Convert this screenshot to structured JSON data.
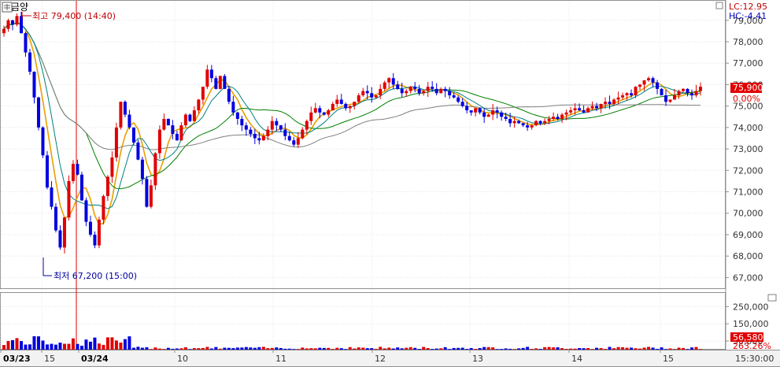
{
  "chart_data": {
    "type": "candlestick",
    "title": "금양",
    "y_axis": {
      "ticks": [
        "79,000",
        "78,000",
        "77,000",
        "76,000",
        "75,000",
        "74,000",
        "73,000",
        "72,000",
        "71,000",
        "70,000",
        "69,000",
        "68,000",
        "67,000"
      ],
      "ylim": [
        66500,
        79800
      ]
    },
    "volume_axis": {
      "ticks": [
        "250,000",
        "150,000",
        "50,000"
      ],
      "max": 320000
    },
    "x_axis": {
      "labels": [
        {
          "text": "03/23",
          "bold": true
        },
        {
          "text": "15",
          "bold": false
        },
        {
          "text": "03/24",
          "bold": true
        },
        {
          "text": "10",
          "bold": false
        },
        {
          "text": "11",
          "bold": false
        },
        {
          "text": "12",
          "bold": false
        },
        {
          "text": "13",
          "bold": false
        },
        {
          "text": "14",
          "bold": false
        },
        {
          "text": "15",
          "bold": false
        }
      ],
      "time_label": "15:30:00"
    },
    "indicators": {
      "lc": "LC:12.95",
      "hc": "HC:-4.41"
    },
    "high_annotation": {
      "value": 79400,
      "text": "최고 79,400 (14:40)"
    },
    "low_annotation": {
      "value": 67200,
      "text": "최저 67,200 (15:00)"
    },
    "current_price": {
      "value": 75900,
      "label": "75,900",
      "change": "0.00%"
    },
    "current_volume": {
      "value": 56580,
      "label": "56,580",
      "ratio": "263.26%"
    },
    "close_series": [
      78600,
      79000,
      78800,
      79200,
      78400,
      77500,
      76600,
      75400,
      74000,
      72700,
      71200,
      70300,
      69200,
      68400,
      69800,
      71500,
      72300,
      71800,
      70600,
      69600,
      69000,
      68500,
      69700,
      70800,
      71700,
      72600,
      74000,
      75200,
      74600,
      74000,
      73300,
      72500,
      71600,
      70300,
      71300,
      72800,
      73900,
      74400,
      74100,
      73700,
      73400,
      74100,
      74600,
      74300,
      74800,
      75300,
      75900,
      76700,
      76300,
      75800,
      76400,
      75800,
      75200,
      74700,
      74400,
      74100,
      73900,
      73700,
      73500,
      73400,
      73600,
      73900,
      74300,
      74100,
      73900,
      73600,
      73400,
      73200,
      73500,
      73900,
      74300,
      74700,
      74900,
      74700,
      74600,
      74800,
      75100,
      75300,
      75100,
      74900,
      75000,
      75200,
      75500,
      75700,
      75600,
      75400,
      75500,
      75800,
      76100,
      76300,
      76000,
      75800,
      75600,
      75700,
      75900,
      75800,
      75600,
      75700,
      75900,
      75800,
      75600,
      75800,
      75700,
      75500,
      75400,
      75200,
      75000,
      74800,
      74700,
      74900,
      74700,
      74500,
      74600,
      74800,
      74700,
      74500,
      74400,
      74200,
      74300,
      74200,
      74100,
      74000,
      74100,
      74300,
      74200,
      74300,
      74400,
      74500,
      74400,
      74600,
      74700,
      74800,
      74900,
      74800,
      74700,
      74900,
      75000,
      74900,
      75100,
      75200,
      75100,
      75300,
      75400,
      75500,
      75600,
      75500,
      75900,
      76000,
      76200,
      76300,
      76100,
      75800,
      75500,
      75200,
      75300,
      75500,
      75700,
      75800,
      75600,
      75500,
      75700,
      75900
    ],
    "candle_color_up": "#e00000",
    "candle_color_down": "#0000e0",
    "ma_colors": [
      "#e8a000",
      "#008000",
      "#808080",
      "#008080"
    ]
  }
}
